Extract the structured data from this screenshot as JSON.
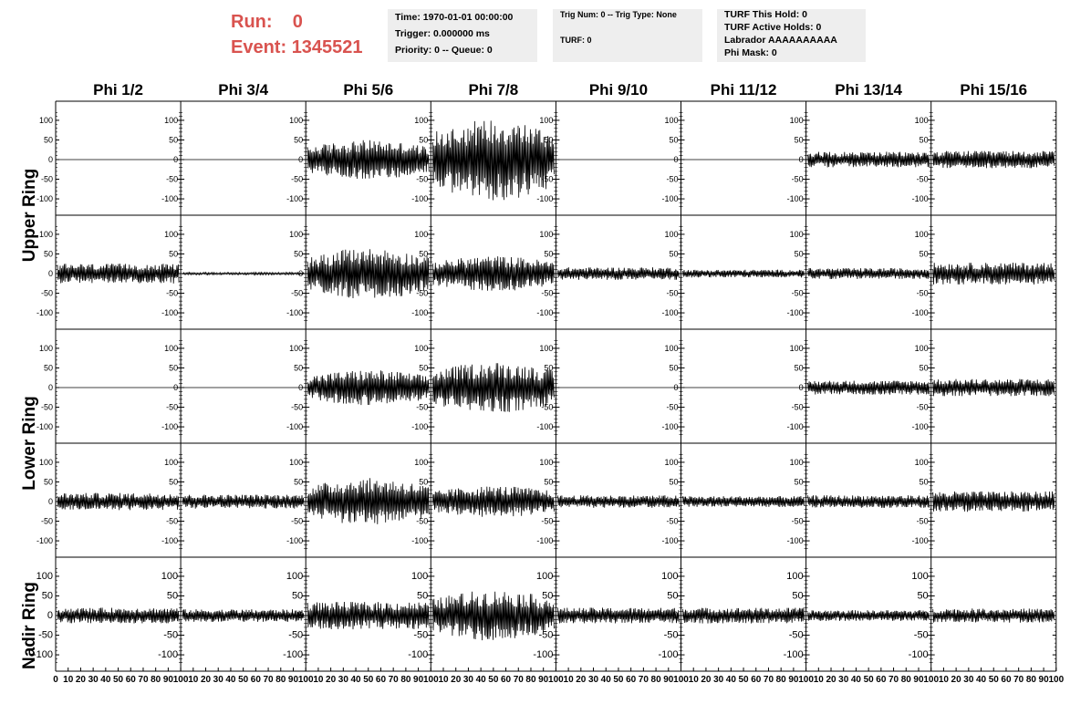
{
  "header": {
    "run_label": "Run:",
    "run_value": "0",
    "event_label": "Event:",
    "event_value": "1345521",
    "accent_color": "#d9534f"
  },
  "info_boxes": [
    {
      "lines": [
        "Time: 1970-01-01 00:00:00",
        "Trigger: 0.000000 ms",
        "Priority: 0 -- Queue: 0"
      ]
    },
    {
      "lines": [
        "Trig Num: 0 -- Trig Type: None",
        "TURF: 0"
      ]
    },
    {
      "lines": [
        "TURF This Hold: 0",
        "TURF Active Holds: 0",
        "Labrador AAAAAAAAAA",
        "Phi Mask: 0"
      ]
    }
  ],
  "chart_data": {
    "type": "line",
    "columns": [
      "Phi 1/2",
      "Phi 3/4",
      "Phi 5/6",
      "Phi 7/8",
      "Phi 9/10",
      "Phi 11/12",
      "Phi 13/14",
      "Phi 15/16"
    ],
    "row_groups": [
      "Upper Ring",
      "Lower Ring",
      "Nadir Ring"
    ],
    "ylim": [
      -130,
      130
    ],
    "xlim": [
      0,
      100
    ],
    "yticks_rows_1_4": [
      "100",
      "50",
      "0",
      "-50",
      "-100"
    ],
    "yticks_row_5": [
      "100",
      "50",
      "0",
      "-50",
      "-100"
    ],
    "xticks": [
      "0",
      "10",
      "20",
      "30",
      "40",
      "50",
      "60",
      "70",
      "80",
      "90",
      "100"
    ],
    "panel_amplitudes": [
      [
        0,
        0,
        50,
        105,
        0,
        0,
        20,
        22
      ],
      [
        25,
        3,
        65,
        45,
        16,
        10,
        14,
        28
      ],
      [
        0,
        0,
        45,
        65,
        0,
        0,
        18,
        22
      ],
      [
        22,
        18,
        60,
        40,
        16,
        14,
        16,
        26
      ],
      [
        20,
        16,
        35,
        65,
        20,
        20,
        14,
        18
      ]
    ],
    "line_color": "#000000"
  }
}
